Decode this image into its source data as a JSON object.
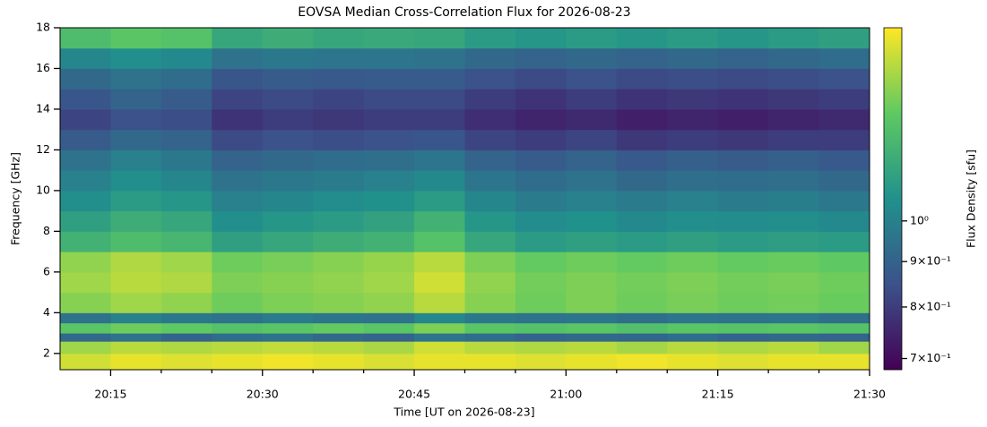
{
  "chart_data": {
    "type": "heatmap",
    "title": "EOVSA Median Cross-Correlation Flux for 2026-08-23",
    "x_label": "Time [UT on 2026-08-23]",
    "y_label": "Frequency [GHz]",
    "colorbar_label": "Flux Density [sfu]",
    "colormap": "viridis",
    "color_scale": "log",
    "xlim": [
      "20:10",
      "21:30"
    ],
    "xticks": [
      "20:15",
      "20:30",
      "20:45",
      "21:00",
      "21:15",
      "21:30"
    ],
    "xminorticks": [
      "20:20",
      "20:25",
      "20:35",
      "20:40",
      "20:50",
      "20:55",
      "21:05",
      "21:10",
      "21:20",
      "21:25"
    ],
    "ylim": [
      1.2,
      18
    ],
    "yticks": [
      2,
      4,
      6,
      8,
      10,
      12,
      14,
      16,
      18
    ],
    "clim": [
      0.68,
      1.65
    ],
    "cticks": [
      {
        "value": 0.7,
        "label": "7×10⁻¹"
      },
      {
        "value": 0.8,
        "label": "8×10⁻¹"
      },
      {
        "value": 0.9,
        "label": "9×10⁻¹"
      },
      {
        "value": 1,
        "label": "10⁰"
      }
    ],
    "time_edges": [
      "20:10",
      "20:15",
      "20:20",
      "20:25",
      "20:30",
      "20:35",
      "20:40",
      "20:45",
      "20:50",
      "20:55",
      "21:00",
      "21:05",
      "21:10",
      "21:15",
      "21:20",
      "21:25",
      "21:30"
    ],
    "freq_edges": [
      1.2,
      2,
      2.6,
      3,
      3.5,
      4,
      5,
      6,
      7,
      8,
      9,
      10,
      11,
      12,
      13,
      14,
      15,
      16,
      17,
      18
    ],
    "values": [
      [
        1.55,
        1.6,
        1.58,
        1.6,
        1.62,
        1.6,
        1.57,
        1.6,
        1.6,
        1.58,
        1.6,
        1.62,
        1.6,
        1.58,
        1.6,
        1.6
      ],
      [
        1.45,
        1.5,
        1.48,
        1.5,
        1.52,
        1.5,
        1.47,
        1.55,
        1.5,
        1.48,
        1.5,
        1.46,
        1.5,
        1.48,
        1.5,
        1.45
      ],
      [
        0.92,
        0.95,
        0.9,
        0.93,
        0.95,
        0.92,
        0.9,
        0.96,
        0.93,
        0.9,
        0.92,
        0.91,
        0.93,
        0.9,
        0.92,
        0.9
      ],
      [
        1.3,
        1.35,
        1.32,
        1.28,
        1.3,
        1.33,
        1.3,
        1.38,
        1.3,
        1.28,
        1.3,
        1.27,
        1.3,
        1.29,
        1.3,
        1.28
      ],
      [
        0.95,
        1.0,
        0.97,
        0.95,
        0.98,
        0.96,
        0.95,
        1.02,
        0.97,
        0.95,
        0.96,
        0.94,
        0.96,
        0.95,
        0.96,
        0.94
      ],
      [
        1.4,
        1.45,
        1.42,
        1.35,
        1.38,
        1.4,
        1.42,
        1.5,
        1.4,
        1.35,
        1.38,
        1.35,
        1.37,
        1.35,
        1.36,
        1.34
      ],
      [
        1.45,
        1.5,
        1.48,
        1.38,
        1.4,
        1.42,
        1.45,
        1.55,
        1.42,
        1.36,
        1.38,
        1.36,
        1.38,
        1.36,
        1.37,
        1.35
      ],
      [
        1.42,
        1.48,
        1.45,
        1.35,
        1.37,
        1.4,
        1.43,
        1.5,
        1.38,
        1.33,
        1.35,
        1.33,
        1.35,
        1.33,
        1.34,
        1.32
      ],
      [
        1.2,
        1.25,
        1.22,
        1.12,
        1.15,
        1.18,
        1.2,
        1.28,
        1.15,
        1.1,
        1.12,
        1.1,
        1.12,
        1.1,
        1.11,
        1.1
      ],
      [
        1.12,
        1.18,
        1.15,
        1.05,
        1.08,
        1.1,
        1.13,
        1.2,
        1.08,
        1.04,
        1.06,
        1.03,
        1.05,
        1.04,
        1.05,
        1.03
      ],
      [
        1.05,
        1.1,
        1.08,
        1.0,
        1.02,
        1.04,
        1.06,
        1.1,
        1.02,
        0.98,
        1.0,
        0.98,
        1.0,
        0.98,
        0.99,
        0.97
      ],
      [
        1.0,
        1.05,
        1.02,
        0.95,
        0.97,
        0.98,
        1.0,
        1.03,
        0.96,
        0.93,
        0.95,
        0.92,
        0.94,
        0.93,
        0.94,
        0.92
      ],
      [
        0.95,
        1.0,
        0.97,
        0.9,
        0.92,
        0.93,
        0.94,
        0.96,
        0.9,
        0.88,
        0.9,
        0.87,
        0.89,
        0.88,
        0.89,
        0.87
      ],
      [
        0.88,
        0.92,
        0.9,
        0.83,
        0.85,
        0.84,
        0.85,
        0.86,
        0.82,
        0.8,
        0.82,
        0.79,
        0.8,
        0.79,
        0.8,
        0.8
      ],
      [
        0.82,
        0.85,
        0.84,
        0.78,
        0.8,
        0.79,
        0.8,
        0.8,
        0.77,
        0.75,
        0.76,
        0.74,
        0.75,
        0.74,
        0.75,
        0.76
      ],
      [
        0.86,
        0.9,
        0.88,
        0.82,
        0.83,
        0.82,
        0.83,
        0.83,
        0.8,
        0.78,
        0.8,
        0.78,
        0.79,
        0.78,
        0.79,
        0.8
      ],
      [
        0.92,
        0.95,
        0.93,
        0.86,
        0.88,
        0.87,
        0.88,
        0.88,
        0.85,
        0.83,
        0.85,
        0.83,
        0.84,
        0.83,
        0.84,
        0.85
      ],
      [
        1.02,
        1.05,
        1.03,
        0.95,
        0.97,
        0.96,
        0.96,
        0.95,
        0.92,
        0.9,
        0.92,
        0.9,
        0.92,
        0.9,
        0.92,
        0.93
      ],
      [
        1.25,
        1.3,
        1.28,
        1.15,
        1.18,
        1.15,
        1.16,
        1.15,
        1.1,
        1.08,
        1.1,
        1.08,
        1.1,
        1.08,
        1.1,
        1.12
      ]
    ]
  }
}
